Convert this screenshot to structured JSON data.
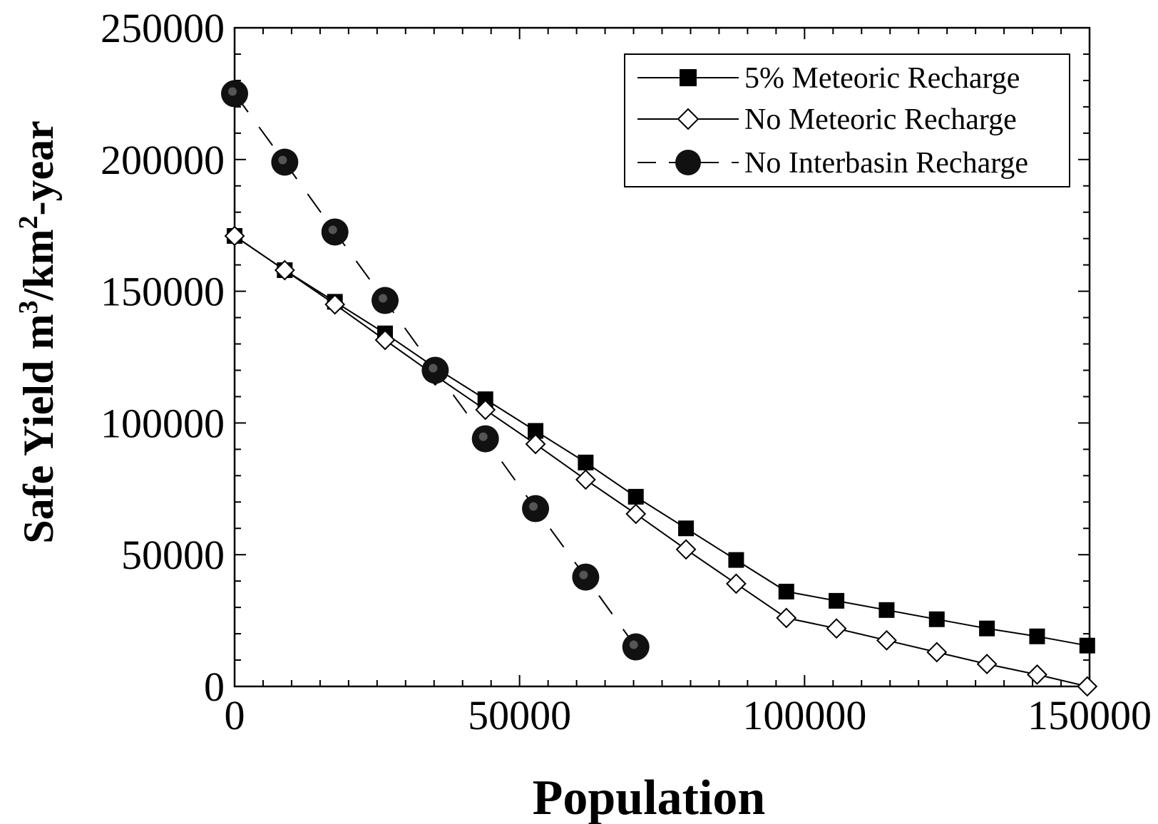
{
  "chart_data": {
    "type": "line",
    "xlabel": "Population",
    "ylabel": {
      "parts": [
        "Safe  Yield m",
        "3",
        "/km",
        "2",
        "-year"
      ]
    },
    "xlim": [
      0,
      150000
    ],
    "ylim": [
      0,
      250000
    ],
    "xticks": [
      0,
      50000,
      100000,
      150000
    ],
    "yticks": [
      0,
      50000,
      100000,
      150000,
      200000,
      250000
    ],
    "grid": false,
    "legend_position": "top-right",
    "series": [
      {
        "name": "5% Meteoric Recharge",
        "marker": "filled-square",
        "line": "solid",
        "color": "#000000",
        "x": [
          0,
          8800,
          17600,
          26400,
          35200,
          44000,
          52800,
          61600,
          70400,
          79200,
          88000,
          96800,
          105600,
          114400,
          123200,
          132000,
          140800,
          149600
        ],
        "y": [
          171000,
          158000,
          146000,
          134000,
          121000,
          109000,
          97000,
          85000,
          72000,
          60000,
          48000,
          36000,
          32500,
          29000,
          25500,
          22000,
          19000,
          15500
        ]
      },
      {
        "name": "No Meteoric Recharge",
        "marker": "open-diamond",
        "line": "solid",
        "color": "#000000",
        "x": [
          0,
          8800,
          17600,
          26400,
          35200,
          44000,
          52800,
          61600,
          70400,
          79200,
          88000,
          96800,
          105600,
          114400,
          123200,
          132000,
          140800,
          149600
        ],
        "y": [
          171000,
          158000,
          145000,
          131500,
          118000,
          105000,
          92000,
          78500,
          65500,
          52000,
          39000,
          26000,
          22000,
          17500,
          13000,
          8500,
          4500,
          0
        ]
      },
      {
        "name": "No Interbasin Recharge",
        "marker": "filled-circle",
        "line": "dashed",
        "color": "#000000",
        "x": [
          0,
          8800,
          17600,
          26400,
          35200,
          44000,
          52800,
          61600,
          70400
        ],
        "y": [
          225000,
          199000,
          172500,
          146500,
          120000,
          94000,
          67500,
          41500,
          15000
        ]
      }
    ]
  }
}
